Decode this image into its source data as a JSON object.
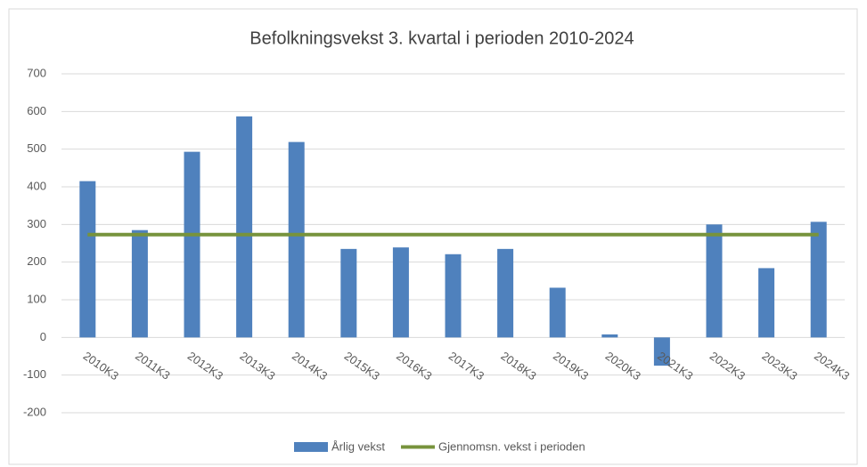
{
  "chart_data": {
    "type": "bar",
    "title": "Befolkningsvekst 3. kvartal i perioden 2010-2024",
    "categories": [
      "2010K3",
      "2011K3",
      "2012K3",
      "2013K3",
      "2014K3",
      "2015K3",
      "2016K3",
      "2017K3",
      "2018K3",
      "2019K3",
      "2020K3",
      "2021K3",
      "2022K3",
      "2023K3",
      "2024K3"
    ],
    "series": [
      {
        "name": "Årlig vekst",
        "type": "bar",
        "color": "#4f81bd",
        "values": [
          415,
          285,
          493,
          587,
          519,
          235,
          239,
          221,
          235,
          132,
          8,
          -75,
          300,
          184,
          307
        ]
      },
      {
        "name": "Gjennomsn. vekst i perioden",
        "type": "line",
        "color": "#77933c",
        "values": [
          273,
          273,
          273,
          273,
          273,
          273,
          273,
          273,
          273,
          273,
          273,
          273,
          273,
          273,
          273
        ]
      }
    ],
    "ylim": [
      -200,
      700
    ],
    "yticks": [
      -200,
      -100,
      0,
      100,
      200,
      300,
      400,
      500,
      600,
      700
    ],
    "grid": true,
    "legend": "bottom"
  }
}
